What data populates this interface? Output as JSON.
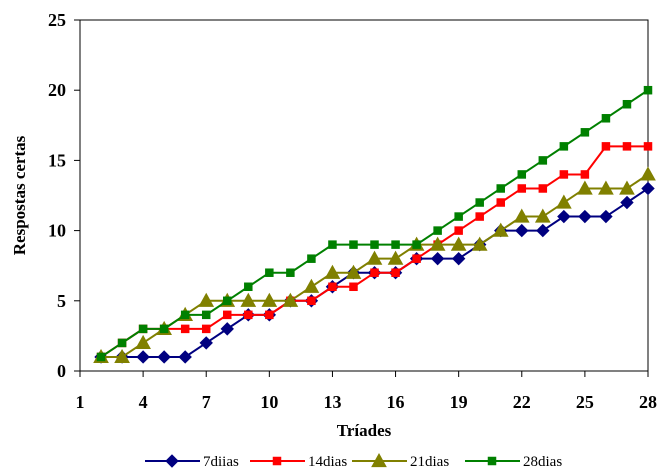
{
  "chart_data": {
    "type": "line",
    "xlabel": "Tríades",
    "ylabel": "Respostas certas",
    "xlim": [
      1,
      28
    ],
    "ylim": [
      0,
      25
    ],
    "x_ticks": [
      1,
      4,
      7,
      10,
      13,
      16,
      19,
      22,
      25,
      28
    ],
    "y_ticks": [
      0,
      5,
      10,
      15,
      20,
      25
    ],
    "grid": false,
    "legend_position": "bottom",
    "x": [
      2,
      3,
      4,
      5,
      6,
      7,
      8,
      9,
      10,
      11,
      12,
      13,
      14,
      15,
      16,
      17,
      18,
      19,
      20,
      21,
      22,
      23,
      24,
      25,
      26,
      27,
      28
    ],
    "series": [
      {
        "name": "7diias",
        "color": "#000080",
        "marker": "diamond",
        "values": [
          1,
          1,
          1,
          1,
          1,
          2,
          3,
          4,
          4,
          5,
          5,
          6,
          7,
          7,
          7,
          8,
          8,
          8,
          9,
          10,
          10,
          10,
          11,
          11,
          11,
          12,
          13
        ]
      },
      {
        "name": "14dias",
        "color": "#ff0000",
        "marker": "square",
        "values": [
          1,
          2,
          3,
          3,
          3,
          3,
          4,
          4,
          4,
          5,
          5,
          6,
          6,
          7,
          7,
          8,
          9,
          10,
          11,
          12,
          13,
          13,
          14,
          14,
          16,
          16,
          16
        ]
      },
      {
        "name": "21dias",
        "color": "#808000",
        "marker": "triangle",
        "values": [
          1,
          1,
          2,
          3,
          4,
          5,
          5,
          5,
          5,
          5,
          6,
          7,
          7,
          8,
          8,
          9,
          9,
          9,
          9,
          10,
          11,
          11,
          12,
          13,
          13,
          13,
          14
        ]
      },
      {
        "name": "28dias",
        "color": "#008000",
        "marker": "square",
        "values": [
          1,
          2,
          3,
          3,
          4,
          4,
          5,
          6,
          7,
          7,
          8,
          9,
          9,
          9,
          9,
          9,
          10,
          11,
          12,
          13,
          14,
          15,
          16,
          17,
          18,
          19,
          20
        ]
      }
    ]
  }
}
